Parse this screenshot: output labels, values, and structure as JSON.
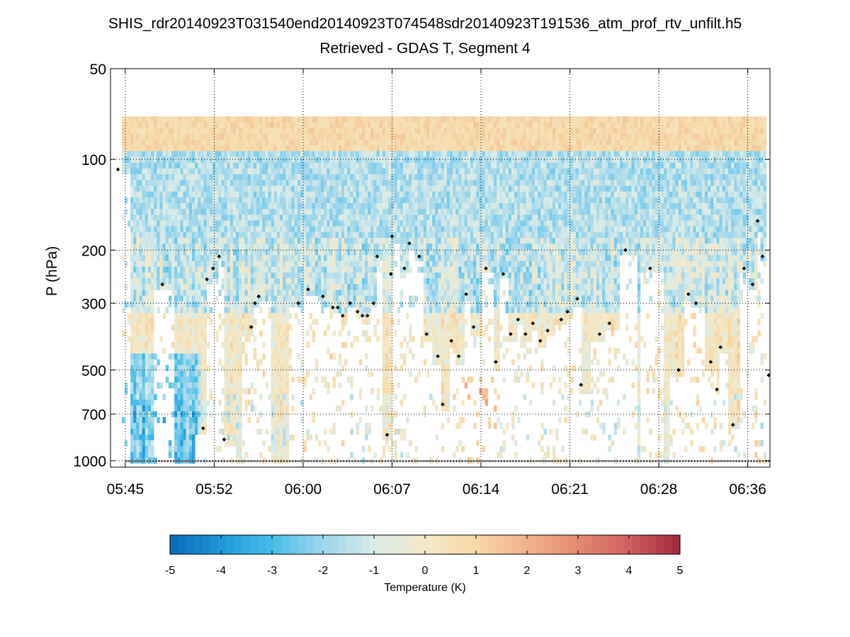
{
  "chart_data": {
    "type": "heatmap",
    "title": "SHIS_rdr20140923T031540end20140923T074548sdr20140923T191536_atm_prof_rtv_unfilt.h5",
    "subtitle": "Retrieved - GDAS T, Segment 4",
    "ylabel": "P (hPa)",
    "xlabel": "",
    "y_scale": "log",
    "y_reversed": true,
    "ylim_hpa": [
      50,
      1050
    ],
    "yticks": [
      50,
      100,
      200,
      300,
      500,
      700,
      1000
    ],
    "ytick_labels": [
      "50",
      "100",
      "200",
      "300",
      "500",
      "700",
      "1000"
    ],
    "xlim_min": [
      -1.2,
      52.2
    ],
    "xticks_min": [
      0,
      7.2,
      14.4,
      21.6,
      28.8,
      36,
      43.2,
      50.4
    ],
    "xtick_labels": [
      "05:45",
      "05:52",
      "06:00",
      "06:07",
      "06:14",
      "06:21",
      "06:28",
      "06:36"
    ],
    "grid": "dotted",
    "n_columns": 220,
    "data_top_hpa": 72,
    "colorbar": {
      "label": "Temperature (K)",
      "min": -5,
      "max": 5,
      "ticks": [
        -5,
        -4,
        -3,
        -2,
        -1,
        0,
        1,
        2,
        3,
        4,
        5
      ],
      "tick_labels": [
        "-5",
        "-4",
        "-3",
        "-2",
        "-1",
        "0",
        "1",
        "2",
        "3",
        "4",
        "5"
      ],
      "colors": [
        "#0a6bb7",
        "#1f96d8",
        "#48bde8",
        "#9dd6ec",
        "#d8ebe8",
        "#f3e8c7",
        "#f7d9a8",
        "#f0b18b",
        "#e48a70",
        "#cf5f5f",
        "#a3283d"
      ]
    },
    "cloud_level_points": [
      {
        "t": -0.6,
        "p": 108
      },
      {
        "t": 3,
        "p": 260
      },
      {
        "t": 6.3,
        "p": 780
      },
      {
        "t": 6.6,
        "p": 250
      },
      {
        "t": 7.1,
        "p": 230
      },
      {
        "t": 7.6,
        "p": 210
      },
      {
        "t": 8,
        "p": 850
      },
      {
        "t": 10.2,
        "p": 360
      },
      {
        "t": 10.5,
        "p": 300
      },
      {
        "t": 10.8,
        "p": 285
      },
      {
        "t": 14,
        "p": 300
      },
      {
        "t": 14.8,
        "p": 270
      },
      {
        "t": 16,
        "p": 285
      },
      {
        "t": 16.8,
        "p": 310
      },
      {
        "t": 17.2,
        "p": 310
      },
      {
        "t": 17.6,
        "p": 330
      },
      {
        "t": 18.2,
        "p": 300
      },
      {
        "t": 18.8,
        "p": 320
      },
      {
        "t": 19.2,
        "p": 330
      },
      {
        "t": 19.6,
        "p": 330
      },
      {
        "t": 20.1,
        "p": 300
      },
      {
        "t": 20.4,
        "p": 210
      },
      {
        "t": 21.2,
        "p": 820
      },
      {
        "t": 21.5,
        "p": 240
      },
      {
        "t": 21.6,
        "p": 180
      },
      {
        "t": 22.6,
        "p": 230
      },
      {
        "t": 23,
        "p": 190
      },
      {
        "t": 23.8,
        "p": 210
      },
      {
        "t": 24.4,
        "p": 380
      },
      {
        "t": 25.3,
        "p": 450
      },
      {
        "t": 25.7,
        "p": 650
      },
      {
        "t": 26.4,
        "p": 400
      },
      {
        "t": 27,
        "p": 450
      },
      {
        "t": 27.6,
        "p": 280
      },
      {
        "t": 28.2,
        "p": 360
      },
      {
        "t": 29.2,
        "p": 230
      },
      {
        "t": 30,
        "p": 470
      },
      {
        "t": 30.6,
        "p": 240
      },
      {
        "t": 31.2,
        "p": 380
      },
      {
        "t": 31.8,
        "p": 340
      },
      {
        "t": 32.4,
        "p": 380
      },
      {
        "t": 33,
        "p": 350
      },
      {
        "t": 33.6,
        "p": 400
      },
      {
        "t": 34.2,
        "p": 370
      },
      {
        "t": 35.3,
        "p": 340
      },
      {
        "t": 35.8,
        "p": 320
      },
      {
        "t": 36.6,
        "p": 290
      },
      {
        "t": 36.9,
        "p": 560
      },
      {
        "t": 38.4,
        "p": 380
      },
      {
        "t": 39.2,
        "p": 350
      },
      {
        "t": 40.5,
        "p": 200
      },
      {
        "t": 42.5,
        "p": 230
      },
      {
        "t": 44.8,
        "p": 500
      },
      {
        "t": 45.6,
        "p": 280
      },
      {
        "t": 46.2,
        "p": 300
      },
      {
        "t": 47.4,
        "p": 470
      },
      {
        "t": 47.9,
        "p": 580
      },
      {
        "t": 48.2,
        "p": 420
      },
      {
        "t": 49.2,
        "p": 760
      },
      {
        "t": 50.1,
        "p": 230
      },
      {
        "t": 50.8,
        "p": 260
      },
      {
        "t": 51.2,
        "p": 160
      },
      {
        "t": 51.6,
        "p": 210
      },
      {
        "t": 52.1,
        "p": 520
      }
    ]
  }
}
